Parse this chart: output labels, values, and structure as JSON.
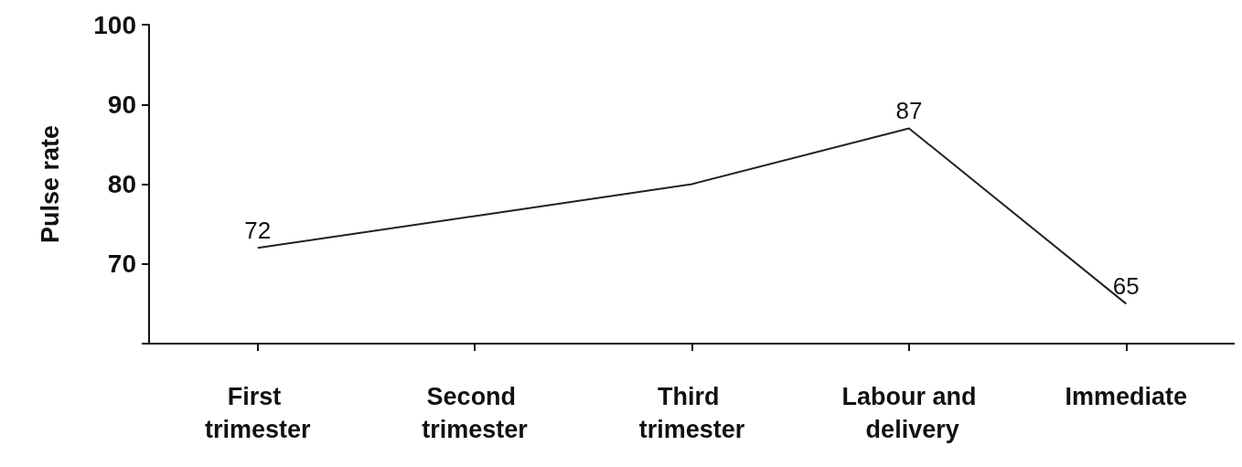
{
  "chart_data": {
    "type": "line",
    "ylabel": "Pulse rate",
    "categories": [
      "First trimester",
      "Second trimester",
      "Third trimester",
      "Labour and delivery",
      "Immediate"
    ],
    "series": [
      {
        "color": "#222222",
        "values": [
          72,
          76,
          80,
          87,
          65
        ],
        "value_labels": [
          "72",
          null,
          null,
          "87",
          "65"
        ]
      }
    ],
    "ylim": [
      60,
      100
    ],
    "yticks": [
      {
        "value": 60,
        "label": null
      },
      70,
      80,
      90,
      100
    ],
    "grid": false,
    "marker": "none",
    "line_style": "solid"
  }
}
